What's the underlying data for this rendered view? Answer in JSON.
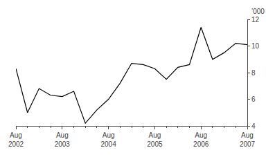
{
  "chart_data": {
    "type": "line",
    "categories": [
      "Aug\n2002",
      null,
      null,
      null,
      "Aug\n2003",
      null,
      null,
      null,
      "Aug\n2004",
      null,
      null,
      null,
      "Aug\n2005",
      null,
      null,
      null,
      "Aug\n2006",
      null,
      null,
      null,
      "Aug\n2007"
    ],
    "values": [
      8.3,
      5.0,
      6.8,
      6.3,
      6.2,
      6.6,
      4.2,
      5.2,
      6.0,
      7.2,
      8.7,
      8.6,
      8.3,
      7.5,
      8.4,
      8.6,
      11.4,
      9.0,
      9.5,
      10.2,
      10.1
    ],
    "color": "#000000",
    "ylabel": "’000",
    "ylim": [
      4,
      12
    ],
    "yticks": [
      4,
      6,
      8,
      10,
      12
    ],
    "grid": false
  }
}
